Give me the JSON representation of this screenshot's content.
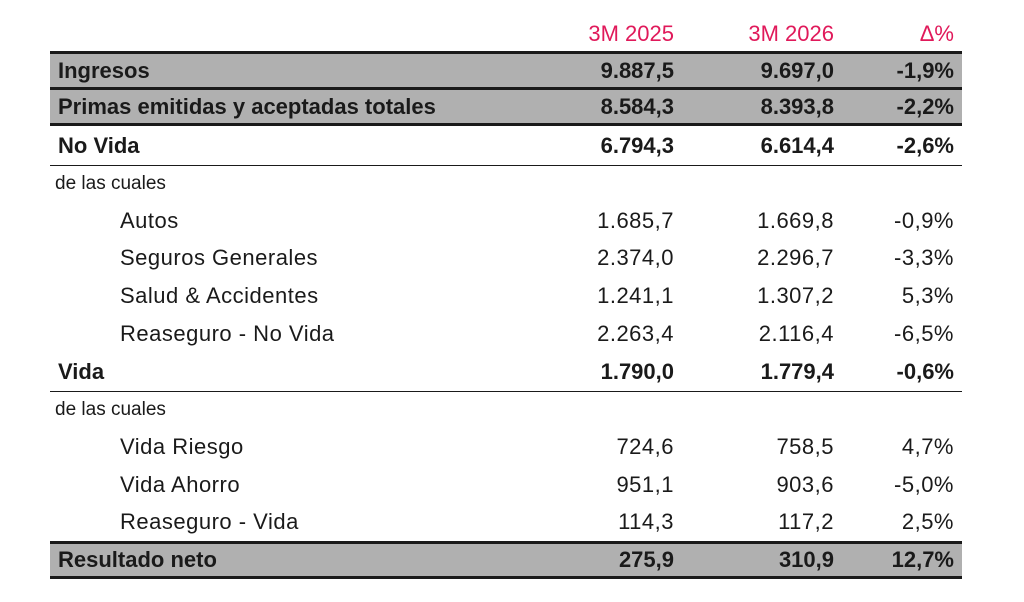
{
  "columns": {
    "col1": "3M 2025",
    "col2": "3M 2026",
    "col3": "Δ%"
  },
  "rows": {
    "ingresos": {
      "label": "Ingresos",
      "v1": "9.887,5",
      "v2": "9.697,0",
      "d": "-1,9%"
    },
    "primas": {
      "label": "Primas emitidas y aceptadas totales",
      "v1": "8.584,3",
      "v2": "8.393,8",
      "d": "-2,2%"
    },
    "no_vida": {
      "label": "No Vida",
      "v1": "6.794,3",
      "v2": "6.614,4",
      "d": "-2,6%"
    },
    "no_vida_sub": {
      "label": "de las cuales"
    },
    "autos": {
      "label": "Autos",
      "v1": "1.685,7",
      "v2": "1.669,8",
      "d": "-0,9%"
    },
    "seguros_generales": {
      "label": "Seguros Generales",
      "v1": "2.374,0",
      "v2": "2.296,7",
      "d": "-3,3%"
    },
    "salud": {
      "label": "Salud & Accidentes",
      "v1": "1.241,1",
      "v2": "1.307,2",
      "d": "5,3%"
    },
    "reaseguro_no_vida": {
      "label": "Reaseguro - No Vida",
      "v1": "2.263,4",
      "v2": "2.116,4",
      "d": "-6,5%"
    },
    "vida": {
      "label": "Vida",
      "v1": "1.790,0",
      "v2": "1.779,4",
      "d": "-0,6%"
    },
    "vida_sub": {
      "label": "de las cuales"
    },
    "vida_riesgo": {
      "label": "Vida Riesgo",
      "v1": "724,6",
      "v2": "758,5",
      "d": "4,7%"
    },
    "vida_ahorro": {
      "label": "Vida Ahorro",
      "v1": "951,1",
      "v2": "903,6",
      "d": "-5,0%"
    },
    "reaseguro_vida": {
      "label": "Reaseguro - Vida",
      "v1": "114,3",
      "v2": "117,2",
      "d": "2,5%"
    },
    "resultado_neto": {
      "label": "Resultado neto",
      "v1": "275,9",
      "v2": "310,9",
      "d": "12,7%"
    }
  },
  "colors": {
    "header_accent": "#e0195a",
    "shade": "#b0b0b0",
    "text": "#1a1a1a"
  }
}
